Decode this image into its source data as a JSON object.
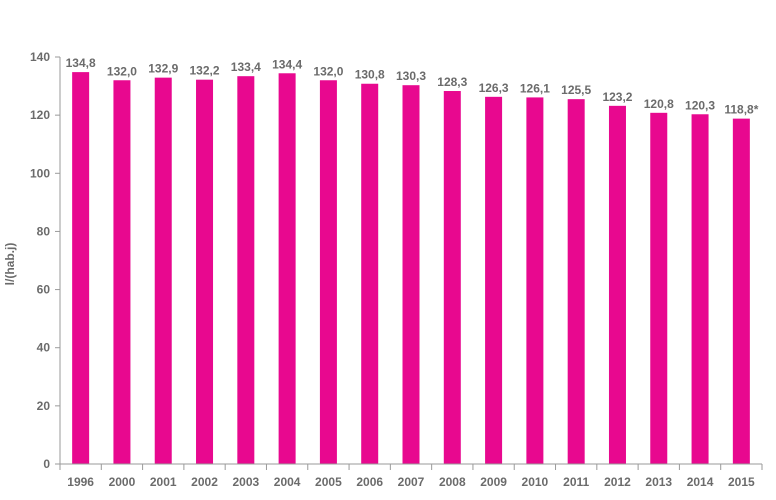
{
  "chart_data": {
    "type": "bar",
    "ylabel": "l/(hab.j)",
    "xlabel": "",
    "title": "",
    "ylim": [
      0,
      140
    ],
    "yticks": [
      0,
      20,
      40,
      60,
      80,
      100,
      120,
      140
    ],
    "grid": false,
    "bar_color": "#e8088f",
    "categories": [
      "1996",
      "2000",
      "2001",
      "2002",
      "2003",
      "2004",
      "2005",
      "2006",
      "2007",
      "2008",
      "2009",
      "2010",
      "2011",
      "2012",
      "2013",
      "2014",
      "2015"
    ],
    "values": [
      134.8,
      132.0,
      132.9,
      132.2,
      133.4,
      134.4,
      132.0,
      130.8,
      130.3,
      128.3,
      126.3,
      126.1,
      125.5,
      123.2,
      120.8,
      120.3,
      118.8
    ],
    "data_labels": [
      "134,8",
      "132,0",
      "132,9",
      "132,2",
      "133,4",
      "134,4",
      "132,0",
      "130,8",
      "130,3",
      "128,3",
      "126,3",
      "126,1",
      "125,5",
      "123,2",
      "120,8",
      "120,3",
      "118,8*"
    ]
  }
}
